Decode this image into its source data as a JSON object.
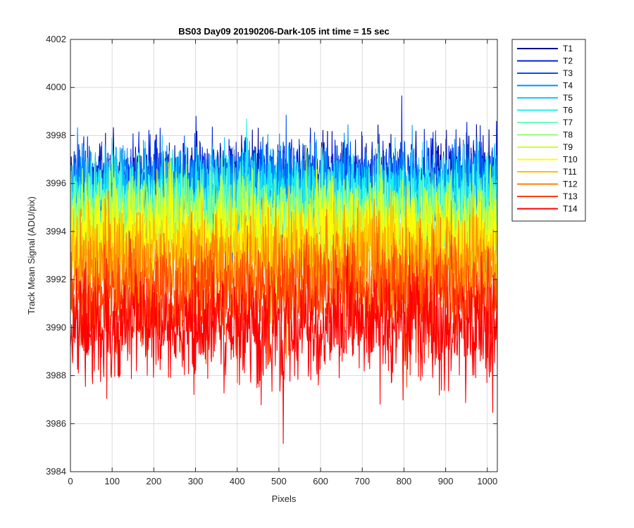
{
  "chart_data": {
    "type": "line",
    "title": "BS03 Day09 20190206-Dark-105 int time = 15 sec",
    "xlabel": "Pixels",
    "ylabel": "Track Mean Signal (ADU/pix)",
    "xlim": [
      0,
      1024
    ],
    "ylim": [
      3984,
      4002
    ],
    "xticks": [
      0,
      100,
      200,
      300,
      400,
      500,
      600,
      700,
      800,
      900,
      1000
    ],
    "yticks": [
      3984,
      3986,
      3988,
      3990,
      3992,
      3994,
      3996,
      3998,
      4000,
      4002
    ],
    "grid": true,
    "legend_position": "outside-top-right",
    "num_points": 1024,
    "series": [
      {
        "name": "T1",
        "color": "#00008F",
        "mean": 3996.0,
        "noise": 0.9
      },
      {
        "name": "T2",
        "color": "#0020DF",
        "mean": 3996.0,
        "noise": 0.9
      },
      {
        "name": "T3",
        "color": "#0050FF",
        "mean": 3995.8,
        "noise": 0.9
      },
      {
        "name": "T4",
        "color": "#0090FF",
        "mean": 3995.8,
        "noise": 0.9
      },
      {
        "name": "T5",
        "color": "#10C8FF",
        "mean": 3995.5,
        "noise": 0.9
      },
      {
        "name": "T6",
        "color": "#20F0F0",
        "mean": 3995.3,
        "noise": 0.9
      },
      {
        "name": "T7",
        "color": "#70FFC0",
        "mean": 3994.8,
        "noise": 0.9
      },
      {
        "name": "T8",
        "color": "#90FF70",
        "mean": 3994.5,
        "noise": 0.9
      },
      {
        "name": "T9",
        "color": "#CFFF30",
        "mean": 3994.0,
        "noise": 1.0
      },
      {
        "name": "T10",
        "color": "#FFFF00",
        "mean": 3993.8,
        "noise": 1.0
      },
      {
        "name": "T11",
        "color": "#FFBF00",
        "mean": 3993.0,
        "noise": 1.0
      },
      {
        "name": "T12",
        "color": "#FF7F00",
        "mean": 3992.3,
        "noise": 1.1
      },
      {
        "name": "T13",
        "color": "#FF4000",
        "mean": 3991.3,
        "noise": 1.1
      },
      {
        "name": "T14",
        "color": "#FF0000",
        "mean": 3990.0,
        "noise": 1.2
      }
    ]
  }
}
